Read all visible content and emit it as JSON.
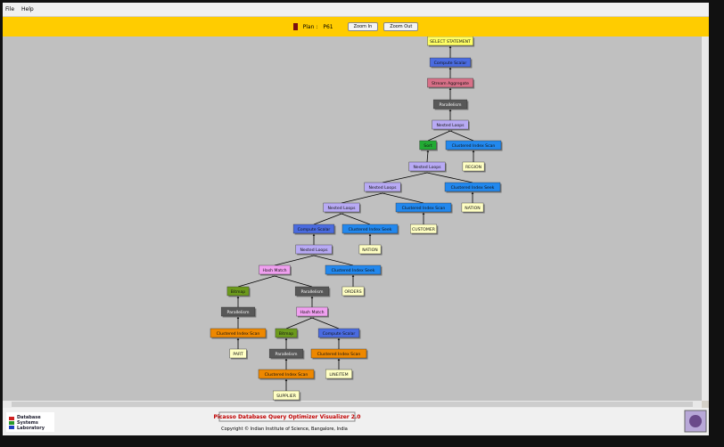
{
  "menu": [
    "File",
    "Help"
  ],
  "toolbar": {
    "plan_label": "Plan :",
    "plan_id": "P61",
    "zoom_in": "Zoom In",
    "zoom_out": "Zoom Out"
  },
  "nodes": [
    "SELECT STATEMENT",
    "Compute Scalar",
    "Stream Aggregate",
    "Parallelism",
    "Nested Loops",
    "Sort",
    "Clustered Index Scan",
    "REGION",
    "Nested Loops",
    "Nested Loops",
    "Clustered Index Seek",
    "NATION",
    "Nested Loops",
    "Clustered Index Scan",
    "CUSTOMER",
    "Compute Scalar",
    "Clustered Index Seek",
    "NATION",
    "Nested Loops",
    "Hash Match",
    "Clustered Index Seek",
    "ORDERS",
    "Bitmap",
    "Parallelism",
    "Parallelism",
    "Hash Match",
    "Clustered Index Scan",
    "Bitmap",
    "Compute Scalar",
    "PART",
    "Parallelism",
    "Clustered Index Scan",
    "Clustered Index Scan",
    "LINEITEM",
    "SUPPLIER"
  ],
  "footer": {
    "lab": [
      "Database",
      "Systems",
      "Laboratory"
    ],
    "title": "Picasso Database Query Optimizer Visualizer 2.0",
    "copyright": "Copyright © Indian Institute of Science, Bangalore, India"
  }
}
